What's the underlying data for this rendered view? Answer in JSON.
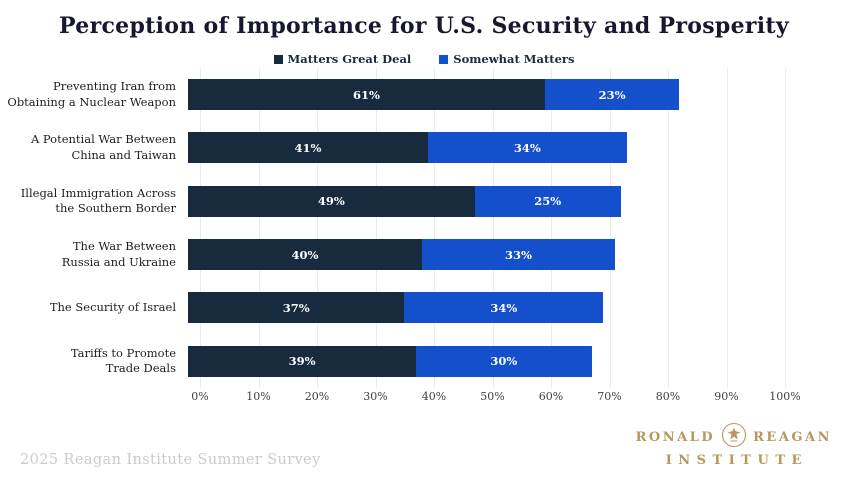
{
  "title": "Perception of Importance for U.S. Security and Prosperity",
  "legend": [
    {
      "label": "Matters Great Deal",
      "color": "#182a3e"
    },
    {
      "label": "Somewhat Matters",
      "color": "#1450cc"
    }
  ],
  "chart_data": {
    "type": "bar",
    "orientation": "horizontal",
    "stacked": true,
    "title": "Perception of Importance for U.S. Security and Prosperity",
    "categories": [
      "Preventing Iran from\nObtaining a Nuclear Weapon",
      "A Potential War Between\nChina and Taiwan",
      "Illegal Immigration Across\nthe Southern Border",
      "The War Between\nRussia and Ukraine",
      "The Security of Israel",
      "Tariffs to Promote\nTrade Deals"
    ],
    "series": [
      {
        "name": "Matters Great Deal",
        "color": "#182a3e",
        "values": [
          61,
          41,
          49,
          40,
          37,
          39
        ]
      },
      {
        "name": "Somewhat Matters",
        "color": "#1450cc",
        "values": [
          23,
          34,
          25,
          33,
          34,
          30
        ]
      }
    ],
    "value_label_suffix": "%",
    "x_ticks": [
      "0%",
      "10%",
      "20%",
      "30%",
      "40%",
      "50%",
      "60%",
      "70%",
      "80%",
      "90%",
      "100%"
    ],
    "xlim": [
      0,
      100
    ],
    "grid": true,
    "legend_position": "top"
  },
  "footer": {
    "source_note": "2025 Reagan Institute Summer Survey"
  },
  "logo": {
    "word_left": "RONALD",
    "word_right": "REAGAN",
    "line2": "INSTITUTE",
    "color": "#b5985a",
    "seal_icon": "eagle-seal"
  }
}
